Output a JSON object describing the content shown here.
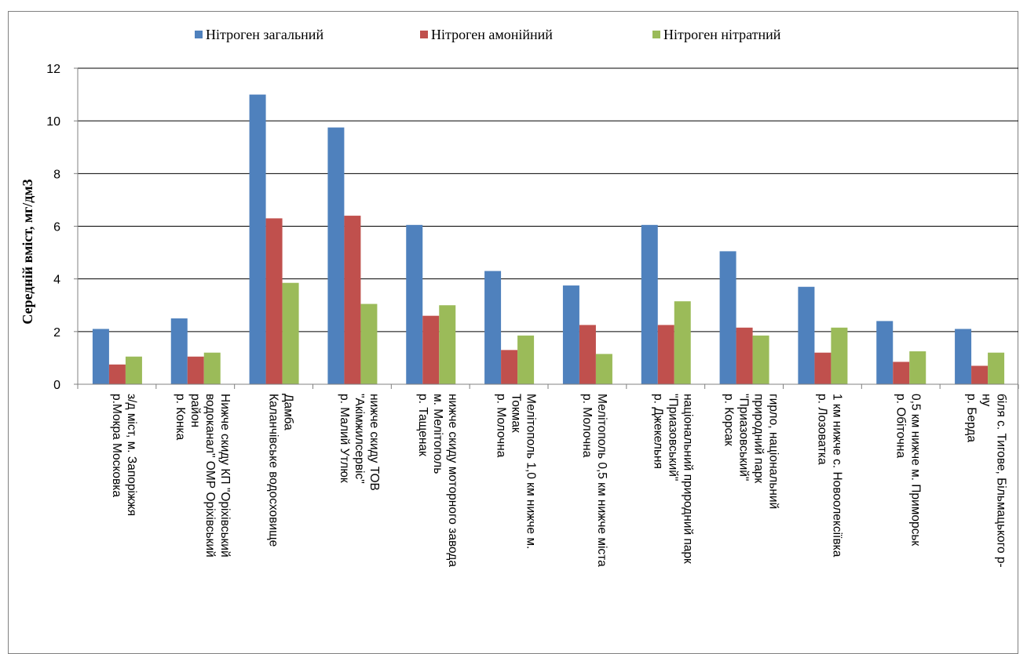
{
  "chart_data": {
    "type": "bar",
    "title": "",
    "xlabel": "",
    "ylabel": "Середній вміст, мг/дм3",
    "ylim": [
      0,
      12
    ],
    "yticks": [
      0,
      2,
      4,
      6,
      8,
      10,
      12
    ],
    "grid": true,
    "legend_position": "top",
    "categories": [
      [
        "з/д міст, м. Запоріжжя",
        "р.Мокра Московка"
      ],
      [
        "Нижче скиду КП \"Оріхівський",
        "водоканал\" ОМР Оріхівський",
        "район",
        "р. Конка"
      ],
      [
        "Дамба",
        "Каланчівське водосховище"
      ],
      [
        "нижче скиду ТОВ",
        "\"Акімжилсервіс\"",
        "р. Малий Утлюк"
      ],
      [
        "нижче скиду моторного завода",
        "м. Мелітополь",
        "р. Тащенак"
      ],
      [
        "Мелітополь 1,0 км нижче м.",
        "Токмак",
        "р. Молочна"
      ],
      [
        "Мелітополь 0,5 км нижче міста",
        "р. Молочна"
      ],
      [
        "національний природний парк",
        "\"Приазовський\"",
        "р. Джекельня"
      ],
      [
        "гирло, національний",
        "природний парк",
        "\"Приазовський\"",
        "р. Корсак"
      ],
      [
        "1 км нижче с. Новоолексіївка",
        "р. Лозоватка"
      ],
      [
        "0,5 км нижче м. Приморськ",
        "р. Обіточна"
      ],
      [
        "біля с. Тигове, Більмацького р-",
        "ну",
        "р. Берда"
      ]
    ],
    "series": [
      {
        "name": "Нітроген загальний",
        "color": "#4f81bd",
        "values": [
          2.1,
          2.5,
          11.0,
          9.75,
          6.05,
          4.3,
          3.75,
          6.05,
          5.05,
          3.7,
          2.4,
          2.1
        ]
      },
      {
        "name": "Нітроген амонійний",
        "color": "#c0504d",
        "values": [
          0.75,
          1.05,
          6.3,
          6.4,
          2.6,
          1.3,
          2.25,
          2.25,
          2.15,
          1.2,
          0.85,
          0.7
        ]
      },
      {
        "name": "Нітроген нітратний",
        "color": "#9bbb59",
        "values": [
          1.05,
          1.2,
          3.85,
          3.05,
          3.0,
          1.85,
          1.15,
          3.15,
          1.85,
          2.15,
          1.25,
          1.2
        ]
      }
    ]
  }
}
